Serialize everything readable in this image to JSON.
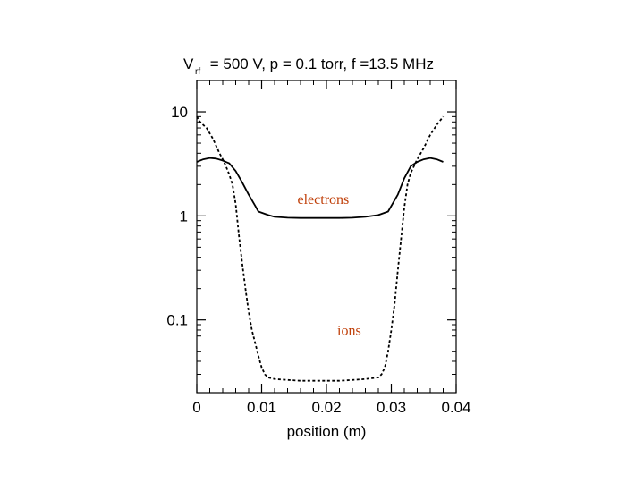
{
  "chart_data": {
    "type": "line",
    "title": {
      "parts": [
        "V",
        "rf",
        " = 500 V, p = 0.1 torr, f =13.5 MHz"
      ]
    },
    "xlabel": "position (m)",
    "ylabel": "",
    "xlim": [
      0,
      0.04
    ],
    "ylim": [
      0.02,
      20
    ],
    "yscale": "log",
    "x_ticks": [
      {
        "value": 0,
        "label": "0"
      },
      {
        "value": 0.01,
        "label": "0.01"
      },
      {
        "value": 0.02,
        "label": "0.02"
      },
      {
        "value": 0.03,
        "label": "0.03"
      },
      {
        "value": 0.04,
        "label": "0.04"
      }
    ],
    "y_ticks": [
      {
        "value": 10,
        "label": "10"
      },
      {
        "value": 1,
        "label": "1"
      },
      {
        "value": 0.1,
        "label": "0.1"
      }
    ],
    "grid": false,
    "legend": "none",
    "series": [
      {
        "name": "electrons",
        "style": "solid",
        "label_color": "#c0400a",
        "label_at": [
          0.0195,
          1.3
        ],
        "points": [
          [
            0.0,
            3.3
          ],
          [
            0.001,
            3.5
          ],
          [
            0.002,
            3.6
          ],
          [
            0.003,
            3.55
          ],
          [
            0.004,
            3.4
          ],
          [
            0.005,
            3.2
          ],
          [
            0.006,
            2.7
          ],
          [
            0.007,
            2.1
          ],
          [
            0.008,
            1.6
          ],
          [
            0.009,
            1.25
          ],
          [
            0.0095,
            1.1
          ],
          [
            0.011,
            1.02
          ],
          [
            0.012,
            0.98
          ],
          [
            0.014,
            0.96
          ],
          [
            0.016,
            0.955
          ],
          [
            0.018,
            0.955
          ],
          [
            0.02,
            0.955
          ],
          [
            0.022,
            0.955
          ],
          [
            0.024,
            0.96
          ],
          [
            0.026,
            0.98
          ],
          [
            0.028,
            1.02
          ],
          [
            0.0295,
            1.1
          ],
          [
            0.031,
            1.6
          ],
          [
            0.032,
            2.3
          ],
          [
            0.033,
            3.0
          ],
          [
            0.034,
            3.3
          ],
          [
            0.035,
            3.5
          ],
          [
            0.036,
            3.6
          ],
          [
            0.037,
            3.5
          ],
          [
            0.038,
            3.3
          ]
        ]
      },
      {
        "name": "ions",
        "style": "dashed",
        "label_color": "#c0400a",
        "label_at": [
          0.0235,
          0.072
        ],
        "points": [
          [
            0.0,
            9.0
          ],
          [
            0.0005,
            8.0
          ],
          [
            0.0015,
            7.0
          ],
          [
            0.0025,
            5.5
          ],
          [
            0.0035,
            4.0
          ],
          [
            0.004,
            3.5
          ],
          [
            0.0045,
            3.0
          ],
          [
            0.005,
            2.5
          ],
          [
            0.0055,
            2.0
          ],
          [
            0.006,
            1.3
          ],
          [
            0.0065,
            0.65
          ],
          [
            0.007,
            0.35
          ],
          [
            0.0075,
            0.2
          ],
          [
            0.008,
            0.12
          ],
          [
            0.0085,
            0.08
          ],
          [
            0.009,
            0.06
          ],
          [
            0.0095,
            0.045
          ],
          [
            0.01,
            0.035
          ],
          [
            0.0105,
            0.03
          ],
          [
            0.011,
            0.028
          ],
          [
            0.012,
            0.027
          ],
          [
            0.014,
            0.0265
          ],
          [
            0.016,
            0.026
          ],
          [
            0.018,
            0.026
          ],
          [
            0.02,
            0.026
          ],
          [
            0.022,
            0.026
          ],
          [
            0.024,
            0.0265
          ],
          [
            0.026,
            0.027
          ],
          [
            0.028,
            0.028
          ],
          [
            0.0285,
            0.03
          ],
          [
            0.029,
            0.035
          ],
          [
            0.0295,
            0.05
          ],
          [
            0.03,
            0.08
          ],
          [
            0.0305,
            0.14
          ],
          [
            0.031,
            0.3
          ],
          [
            0.0315,
            0.6
          ],
          [
            0.032,
            1.2
          ],
          [
            0.0325,
            2.0
          ],
          [
            0.033,
            2.6
          ],
          [
            0.034,
            3.5
          ],
          [
            0.035,
            4.5
          ],
          [
            0.036,
            6.0
          ],
          [
            0.037,
            7.5
          ],
          [
            0.038,
            9.0
          ]
        ]
      }
    ]
  }
}
